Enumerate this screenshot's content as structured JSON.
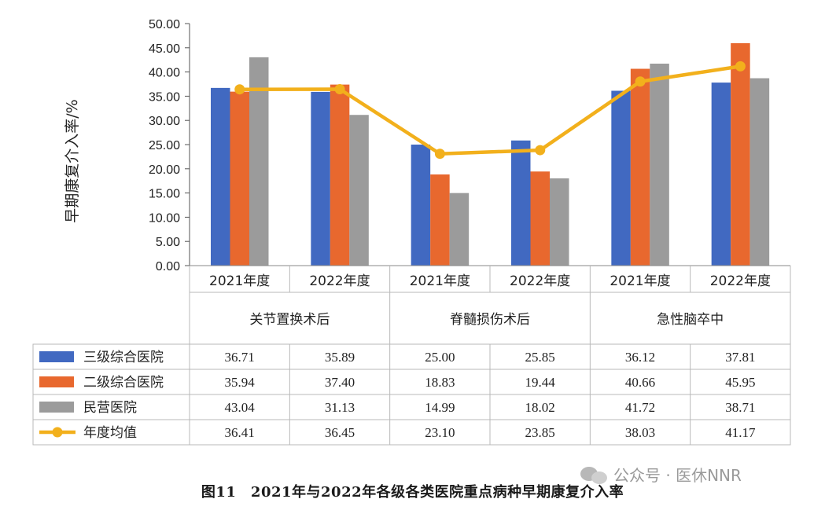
{
  "chart_data": {
    "type": "bar",
    "ylabel": "早期康复介入率/%",
    "ylim": [
      0,
      50
    ],
    "yticks": [
      "50.00",
      "45.00",
      "40.00",
      "35.00",
      "30.00",
      "25.00",
      "20.00",
      "15.00",
      "10.00",
      "5.00",
      "0.00"
    ],
    "categories": [
      "2021年度",
      "2022年度",
      "2021年度",
      "2022年度",
      "2021年度",
      "2022年度"
    ],
    "groups": [
      "关节置换术后",
      "脊髓损伤术后",
      "急性脑卒中"
    ],
    "series": [
      {
        "name": "三级综合医院",
        "kind": "bar",
        "color": "#4169C1",
        "values": [
          36.71,
          35.89,
          25.0,
          25.85,
          36.12,
          37.81
        ],
        "labels": [
          "36.71",
          "35.89",
          "25.00",
          "25.85",
          "36.12",
          "37.81"
        ]
      },
      {
        "name": "二级综合医院",
        "kind": "bar",
        "color": "#E8682E",
        "values": [
          35.94,
          37.4,
          18.83,
          19.44,
          40.66,
          45.95
        ],
        "labels": [
          "35.94",
          "37.40",
          "18.83",
          "19.44",
          "40.66",
          "45.95"
        ]
      },
      {
        "name": "民营医院",
        "kind": "bar",
        "color": "#9B9B9B",
        "values": [
          43.04,
          31.13,
          14.99,
          18.02,
          41.72,
          38.71
        ],
        "labels": [
          "43.04",
          "31.13",
          "14.99",
          "18.02",
          "41.72",
          "38.71"
        ]
      },
      {
        "name": "年度均值",
        "kind": "line",
        "color": "#F2B01C",
        "values": [
          36.41,
          36.45,
          23.1,
          23.85,
          38.03,
          41.17
        ],
        "labels": [
          "36.41",
          "36.45",
          "23.10",
          "23.85",
          "38.03",
          "41.17"
        ]
      }
    ]
  },
  "caption": "图11　2021年与2022年各级各类医院重点病种早期康复介入率",
  "watermark": "公众号 · 医休NNR"
}
